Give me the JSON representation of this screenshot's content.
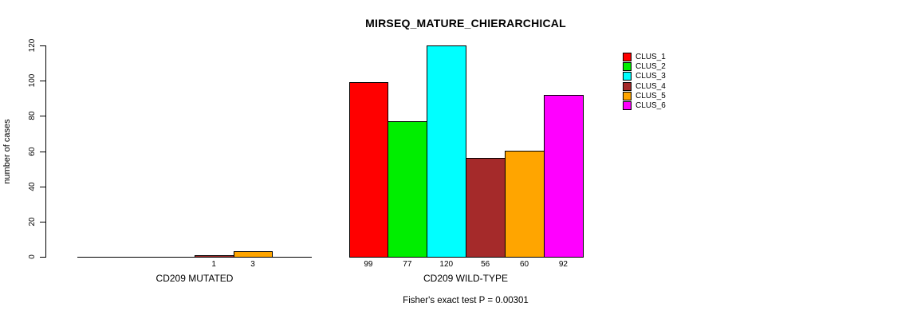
{
  "chart_data": {
    "type": "bar",
    "title": "MIRSEQ_MATURE_CHIERARCHICAL",
    "ylabel": "number of cases",
    "footnote": "Fisher's exact test P = 0.00301",
    "ylim": [
      0,
      120
    ],
    "yticks": [
      0,
      20,
      40,
      60,
      80,
      100,
      120
    ],
    "grid": false,
    "legend_position": "right",
    "series": [
      {
        "name": "CLUS_1",
        "color": "#FF0000"
      },
      {
        "name": "CLUS_2",
        "color": "#00EE00"
      },
      {
        "name": "CLUS_3",
        "color": "#00FFFF"
      },
      {
        "name": "CLUS_4",
        "color": "#A52A2A"
      },
      {
        "name": "CLUS_5",
        "color": "#FFA500"
      },
      {
        "name": "CLUS_6",
        "color": "#FF00FF"
      }
    ],
    "groups": [
      {
        "label": "CD209 MUTATED",
        "values": [
          0,
          0,
          0,
          1,
          3,
          0
        ]
      },
      {
        "label": "CD209 WILD-TYPE",
        "values": [
          99,
          77,
          120,
          56,
          60,
          92
        ]
      }
    ],
    "bar_value_labels_shown": "only for values greater than 0"
  }
}
